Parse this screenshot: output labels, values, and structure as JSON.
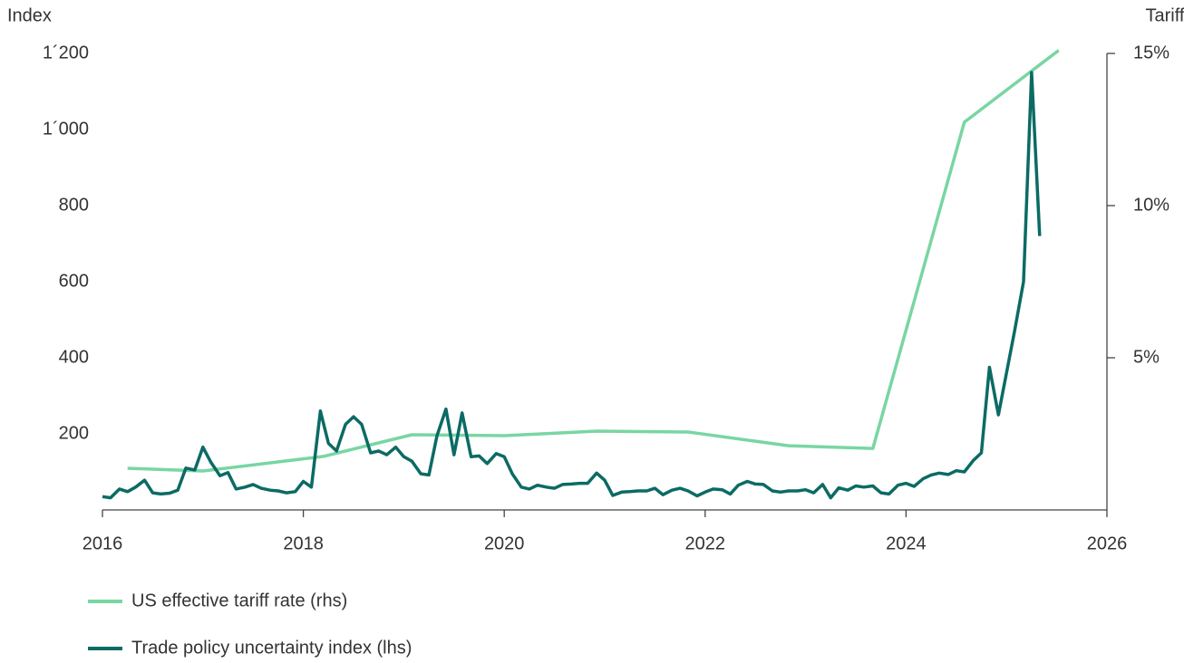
{
  "chart_data": {
    "type": "line",
    "y_label": "Index",
    "y2_label": "Tariff",
    "xlim": [
      2016,
      2026
    ],
    "xticks": [
      2016,
      2018,
      2020,
      2022,
      2024,
      2026
    ],
    "ylim": [
      0,
      1200
    ],
    "yticks": [
      200,
      400,
      600,
      800,
      {
        "value": 1000,
        "label": "1´000"
      },
      {
        "value": 1200,
        "label": "1´200"
      }
    ],
    "y2lim": [
      0,
      15
    ],
    "y2ticks": [
      {
        "value": 5,
        "label": "5%"
      },
      {
        "value": 10,
        "label": "10%"
      },
      {
        "value": 15,
        "label": "15%"
      }
    ],
    "grid": false,
    "legend": "bottom-left",
    "series": [
      {
        "name": "US effective tariff rate (rhs)",
        "color": "#78d6a2",
        "axis": "y2",
        "x": [
          2016.25,
          2017.0,
          2018.2,
          2019.08,
          2020.0,
          2020.92,
          2021.83,
          2022.83,
          2023.67,
          2024.58,
          2025.52
        ],
        "values": [
          1.37,
          1.28,
          1.76,
          2.47,
          2.44,
          2.59,
          2.56,
          2.11,
          2.02,
          12.74,
          15.1
        ]
      },
      {
        "name": "Trade policy uncertainty index (lhs)",
        "color": "#0b6b64",
        "axis": "y",
        "x": [
          2016.0,
          2016.08,
          2016.17,
          2016.25,
          2016.33,
          2016.42,
          2016.5,
          2016.58,
          2016.67,
          2016.75,
          2016.83,
          2016.92,
          2017.0,
          2017.08,
          2017.17,
          2017.25,
          2017.33,
          2017.42,
          2017.5,
          2017.58,
          2017.67,
          2017.75,
          2017.83,
          2017.92,
          2018.0,
          2018.08,
          2018.17,
          2018.25,
          2018.33,
          2018.42,
          2018.5,
          2018.58,
          2018.67,
          2018.75,
          2018.83,
          2018.92,
          2019.0,
          2019.08,
          2019.17,
          2019.25,
          2019.33,
          2019.42,
          2019.5,
          2019.58,
          2019.67,
          2019.75,
          2019.83,
          2019.92,
          2020.0,
          2020.08,
          2020.17,
          2020.25,
          2020.33,
          2020.42,
          2020.5,
          2020.58,
          2020.67,
          2020.75,
          2020.83,
          2020.92,
          2021.0,
          2021.08,
          2021.17,
          2021.25,
          2021.33,
          2021.42,
          2021.5,
          2021.58,
          2021.67,
          2021.75,
          2021.83,
          2021.92,
          2022.0,
          2022.08,
          2022.17,
          2022.25,
          2022.33,
          2022.42,
          2022.5,
          2022.58,
          2022.67,
          2022.75,
          2022.83,
          2022.92,
          2023.0,
          2023.08,
          2023.17,
          2023.25,
          2023.33,
          2023.42,
          2023.5,
          2023.58,
          2023.67,
          2023.75,
          2023.83,
          2023.92,
          2024.0,
          2024.08,
          2024.17,
          2024.25,
          2024.33,
          2024.42,
          2024.5,
          2024.58,
          2024.67,
          2024.75,
          2024.83,
          2024.92,
          2025.0,
          2025.08,
          2025.17,
          2025.25,
          2025.33
        ],
        "values": [
          35,
          32,
          55,
          48,
          60,
          78,
          45,
          42,
          44,
          52,
          110,
          105,
          165,
          125,
          90,
          98,
          55,
          60,
          67,
          57,
          52,
          50,
          45,
          48,
          75,
          60,
          260,
          175,
          155,
          225,
          245,
          225,
          150,
          155,
          145,
          165,
          140,
          128,
          95,
          92,
          195,
          265,
          145,
          255,
          140,
          142,
          122,
          148,
          140,
          95,
          60,
          55,
          65,
          60,
          57,
          67,
          68,
          70,
          70,
          97,
          78,
          38,
          47,
          48,
          50,
          50,
          57,
          40,
          52,
          57,
          50,
          37,
          47,
          55,
          53,
          42,
          65,
          75,
          68,
          67,
          50,
          47,
          50,
          50,
          53,
          45,
          67,
          32,
          58,
          52,
          63,
          60,
          63,
          45,
          42,
          65,
          70,
          62,
          82,
          92,
          97,
          93,
          103,
          100,
          130,
          150,
          375,
          250,
          360,
          470,
          600,
          1150,
          720
        ]
      }
    ]
  }
}
